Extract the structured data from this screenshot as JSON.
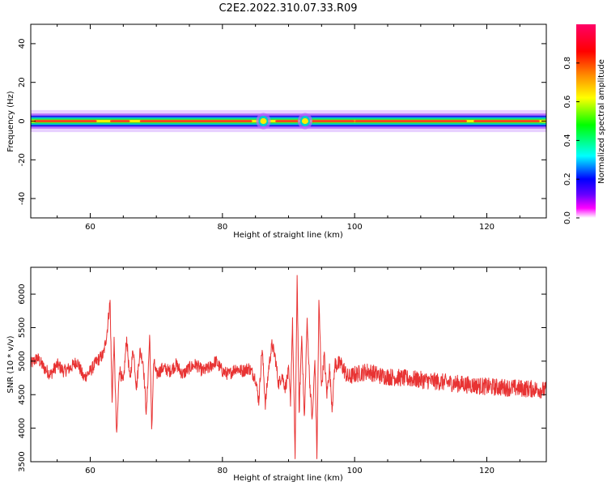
{
  "figure_title": "C2E2.2022.310.07.33.R09",
  "chart_data": [
    {
      "type": "heatmap",
      "xlabel": "Height of straight line (km)",
      "ylabel": "Frequency (Hz)",
      "xlim": [
        51,
        129
      ],
      "ylim": [
        -50,
        50
      ],
      "x_ticks": [
        60,
        80,
        100,
        120
      ],
      "y_ticks": [
        -40,
        -20,
        0,
        20,
        40
      ],
      "grid": false,
      "band_center_hz": 0,
      "band_halfwidth_hz": 3,
      "bright_spots_km": [
        86.2,
        92.5
      ],
      "colorbar": {
        "label": "Normalized spectral amplitude",
        "range": [
          0.0,
          1.0
        ],
        "ticks": [
          0.0,
          0.2,
          0.4,
          0.6,
          0.8
        ],
        "colormap": [
          "#ffffff",
          "#ff00ff",
          "#6600ff",
          "#0000ff",
          "#00ffff",
          "#00ff00",
          "#ffff00",
          "#ff8800",
          "#ff0000",
          "#ff0066"
        ]
      }
    },
    {
      "type": "line",
      "xlabel": "Height of straight line (km)",
      "ylabel": "SNR (10 * v/v)",
      "xlim": [
        51,
        129
      ],
      "ylim": [
        3500,
        6400
      ],
      "x_ticks": [
        60,
        80,
        100,
        120
      ],
      "y_ticks": [
        3500,
        4000,
        4500,
        5000,
        5500,
        6000
      ],
      "grid": false,
      "line_color": "#e83333",
      "series": [
        {
          "x": [
            51,
            52,
            53,
            54,
            55,
            56,
            57,
            58,
            59,
            60,
            61,
            62,
            62.5,
            63,
            63.3,
            63.6,
            64,
            64.4,
            65,
            65.5,
            66,
            66.5,
            67,
            67.5,
            68,
            68.5,
            69,
            69.3,
            69.6,
            70,
            71,
            72,
            73,
            74,
            75,
            76,
            77,
            78,
            79,
            80,
            81,
            82,
            83,
            84,
            85,
            85.5,
            86,
            86.5,
            87,
            87.5,
            88,
            88.5,
            89,
            89.5,
            90,
            90.3,
            90.6,
            91,
            91.3,
            91.6,
            92,
            92.4,
            92.8,
            93.2,
            93.6,
            94,
            94.3,
            94.6,
            95,
            95.4,
            95.8,
            96.2,
            96.6,
            97,
            98,
            99,
            100,
            102,
            104,
            106,
            108,
            110,
            112,
            114,
            116,
            118,
            120,
            122,
            124,
            126,
            128,
            129
          ],
          "values": [
            4950,
            5050,
            4900,
            4800,
            4950,
            4850,
            4900,
            5000,
            4750,
            4850,
            5000,
            5100,
            5400,
            5900,
            4400,
            5300,
            3850,
            4900,
            4650,
            5350,
            4700,
            5200,
            4600,
            5150,
            5000,
            4200,
            5400,
            3950,
            5000,
            4800,
            4900,
            4850,
            4950,
            4800,
            4900,
            4950,
            4850,
            4900,
            5000,
            4850,
            4800,
            4900,
            4850,
            4900,
            4750,
            4400,
            5200,
            4350,
            4900,
            5250,
            5050,
            4650,
            4800,
            4600,
            4850,
            4400,
            5600,
            3550,
            6300,
            4200,
            5400,
            4100,
            5600,
            4700,
            4100,
            5050,
            3550,
            5900,
            4600,
            5100,
            4500,
            4900,
            4300,
            4950,
            4950,
            4750,
            4800,
            4850,
            4780,
            4760,
            4740,
            4720,
            4700,
            4680,
            4660,
            4640,
            4620,
            4610,
            4600,
            4590,
            4580,
            4560
          ]
        }
      ]
    }
  ]
}
